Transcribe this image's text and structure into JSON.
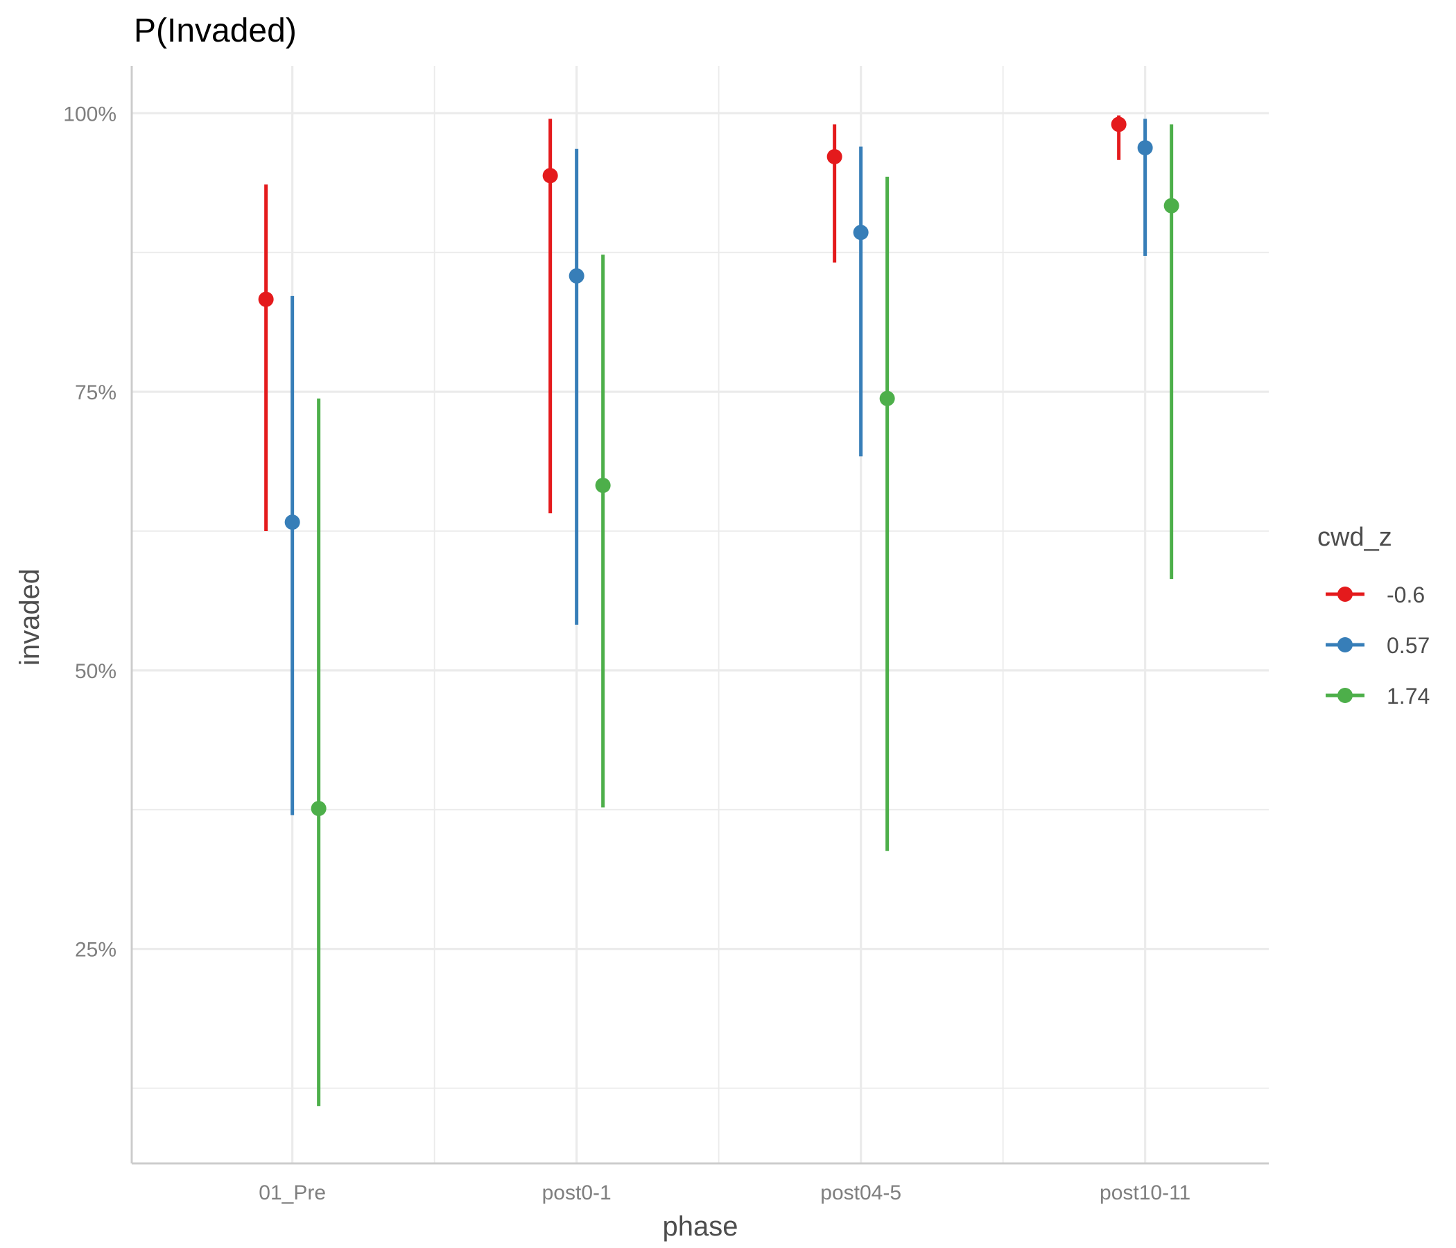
{
  "chart_data": {
    "type": "scatter",
    "title": "P(Invaded)",
    "xlabel": "phase",
    "ylabel": "invaded",
    "categories": [
      "01_Pre",
      "post0-1",
      "post04-5",
      "post10-11"
    ],
    "yticks": [
      0.25,
      0.5,
      0.75,
      1.0
    ],
    "ytick_labels": [
      "25%",
      "50%",
      "75%",
      "100%"
    ],
    "ylim": [
      0.0575,
      1.0425
    ],
    "grid": true,
    "legend": {
      "title": "cwd_z",
      "placement": "right"
    },
    "series": [
      {
        "name": "-0.6",
        "color": "#e41a1c",
        "values": [
          0.833,
          0.944,
          0.961,
          0.99
        ],
        "lower": [
          0.625,
          0.641,
          0.866,
          0.958
        ],
        "upper": [
          0.936,
          0.995,
          0.99,
          0.998
        ]
      },
      {
        "name": "0.57",
        "color": "#377eb8",
        "values": [
          0.633,
          0.854,
          0.893,
          0.969
        ],
        "lower": [
          0.37,
          0.541,
          0.692,
          0.872
        ],
        "upper": [
          0.836,
          0.968,
          0.97,
          0.995
        ]
      },
      {
        "name": "1.74",
        "color": "#4daf4a",
        "values": [
          0.376,
          0.666,
          0.744,
          0.917
        ],
        "lower": [
          0.109,
          0.377,
          0.338,
          0.582
        ],
        "upper": [
          0.744,
          0.873,
          0.943,
          0.99
        ]
      }
    ]
  }
}
